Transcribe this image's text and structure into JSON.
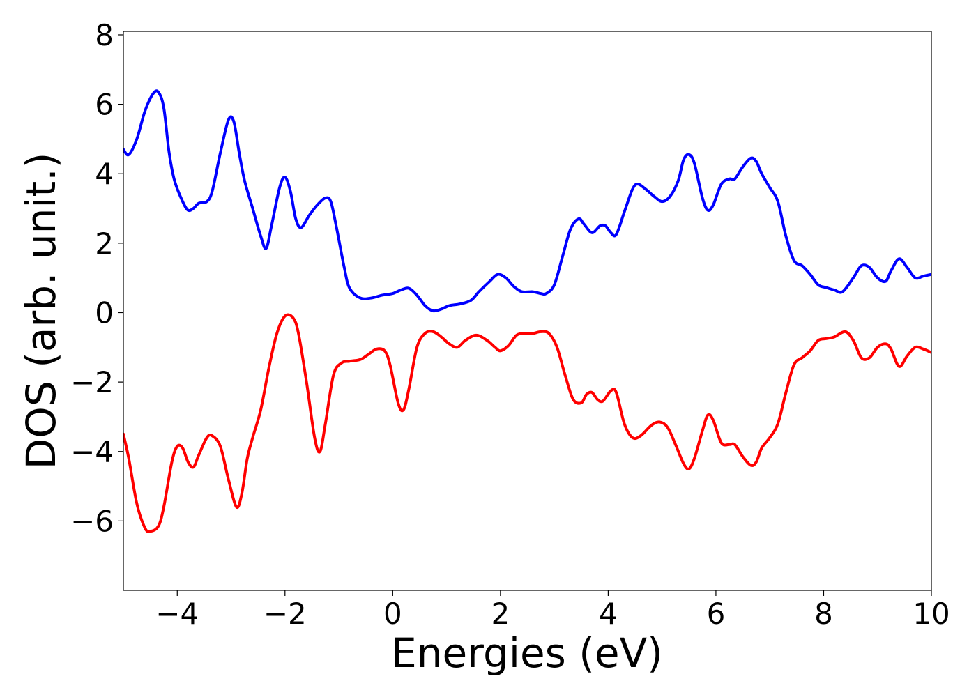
{
  "chart_data": {
    "type": "line",
    "title": "",
    "xlabel": "Energies (eV)",
    "ylabel": "DOS (arb. unit.)",
    "xlim": [
      -5,
      10
    ],
    "ylim": [
      -8,
      8.1
    ],
    "xticks": [
      -4,
      -2,
      0,
      2,
      4,
      6,
      8,
      10
    ],
    "xtick_labels": [
      "−4",
      "−2",
      "0",
      "2",
      "4",
      "6",
      "8",
      "10"
    ],
    "yticks": [
      -6,
      -4,
      -2,
      0,
      2,
      4,
      6,
      8
    ],
    "ytick_labels": [
      "−6",
      "−4",
      "−2",
      "0",
      "2",
      "4",
      "6",
      "8"
    ],
    "grid": false,
    "legend": "none",
    "series": [
      {
        "color": "#0000ff",
        "points": [
          [
            -5.0,
            4.7
          ],
          [
            -4.9,
            4.55
          ],
          [
            -4.75,
            5.0
          ],
          [
            -4.6,
            5.8
          ],
          [
            -4.45,
            6.3
          ],
          [
            -4.35,
            6.35
          ],
          [
            -4.25,
            5.9
          ],
          [
            -4.15,
            4.6
          ],
          [
            -4.05,
            3.8
          ],
          [
            -3.9,
            3.2
          ],
          [
            -3.8,
            2.95
          ],
          [
            -3.7,
            3.0
          ],
          [
            -3.6,
            3.15
          ],
          [
            -3.45,
            3.2
          ],
          [
            -3.35,
            3.5
          ],
          [
            -3.2,
            4.6
          ],
          [
            -3.05,
            5.55
          ],
          [
            -2.95,
            5.5
          ],
          [
            -2.85,
            4.6
          ],
          [
            -2.75,
            3.8
          ],
          [
            -2.6,
            3.0
          ],
          [
            -2.45,
            2.2
          ],
          [
            -2.35,
            1.85
          ],
          [
            -2.25,
            2.5
          ],
          [
            -2.1,
            3.6
          ],
          [
            -2.0,
            3.9
          ],
          [
            -1.9,
            3.5
          ],
          [
            -1.8,
            2.7
          ],
          [
            -1.7,
            2.45
          ],
          [
            -1.55,
            2.8
          ],
          [
            -1.4,
            3.1
          ],
          [
            -1.25,
            3.3
          ],
          [
            -1.15,
            3.2
          ],
          [
            -1.05,
            2.5
          ],
          [
            -0.9,
            1.3
          ],
          [
            -0.8,
            0.7
          ],
          [
            -0.6,
            0.42
          ],
          [
            -0.4,
            0.42
          ],
          [
            -0.2,
            0.5
          ],
          [
            0.0,
            0.55
          ],
          [
            0.15,
            0.65
          ],
          [
            0.3,
            0.7
          ],
          [
            0.45,
            0.5
          ],
          [
            0.6,
            0.2
          ],
          [
            0.75,
            0.05
          ],
          [
            0.9,
            0.1
          ],
          [
            1.05,
            0.2
          ],
          [
            1.25,
            0.25
          ],
          [
            1.45,
            0.35
          ],
          [
            1.6,
            0.6
          ],
          [
            1.8,
            0.9
          ],
          [
            1.95,
            1.1
          ],
          [
            2.1,
            1.0
          ],
          [
            2.25,
            0.75
          ],
          [
            2.4,
            0.6
          ],
          [
            2.6,
            0.6
          ],
          [
            2.75,
            0.55
          ],
          [
            2.85,
            0.55
          ],
          [
            3.0,
            0.8
          ],
          [
            3.15,
            1.6
          ],
          [
            3.3,
            2.4
          ],
          [
            3.45,
            2.7
          ],
          [
            3.55,
            2.55
          ],
          [
            3.7,
            2.3
          ],
          [
            3.85,
            2.5
          ],
          [
            3.95,
            2.5
          ],
          [
            4.05,
            2.3
          ],
          [
            4.15,
            2.25
          ],
          [
            4.3,
            2.9
          ],
          [
            4.45,
            3.55
          ],
          [
            4.55,
            3.7
          ],
          [
            4.7,
            3.55
          ],
          [
            4.85,
            3.35
          ],
          [
            5.0,
            3.2
          ],
          [
            5.15,
            3.35
          ],
          [
            5.3,
            3.8
          ],
          [
            5.4,
            4.4
          ],
          [
            5.5,
            4.55
          ],
          [
            5.6,
            4.3
          ],
          [
            5.75,
            3.3
          ],
          [
            5.85,
            2.95
          ],
          [
            5.95,
            3.1
          ],
          [
            6.1,
            3.7
          ],
          [
            6.25,
            3.85
          ],
          [
            6.35,
            3.85
          ],
          [
            6.5,
            4.2
          ],
          [
            6.65,
            4.45
          ],
          [
            6.75,
            4.35
          ],
          [
            6.85,
            4.0
          ],
          [
            7.0,
            3.6
          ],
          [
            7.15,
            3.2
          ],
          [
            7.3,
            2.2
          ],
          [
            7.45,
            1.5
          ],
          [
            7.6,
            1.35
          ],
          [
            7.75,
            1.1
          ],
          [
            7.9,
            0.8
          ],
          [
            8.05,
            0.72
          ],
          [
            8.2,
            0.65
          ],
          [
            8.35,
            0.6
          ],
          [
            8.55,
            1.0
          ],
          [
            8.7,
            1.35
          ],
          [
            8.85,
            1.3
          ],
          [
            9.0,
            1.0
          ],
          [
            9.15,
            0.9
          ],
          [
            9.25,
            1.2
          ],
          [
            9.4,
            1.55
          ],
          [
            9.55,
            1.3
          ],
          [
            9.7,
            1.0
          ],
          [
            9.85,
            1.05
          ],
          [
            10.0,
            1.1
          ]
        ]
      },
      {
        "color": "#ff0000",
        "points": [
          [
            -5.0,
            -3.5
          ],
          [
            -4.9,
            -4.2
          ],
          [
            -4.75,
            -5.5
          ],
          [
            -4.6,
            -6.2
          ],
          [
            -4.5,
            -6.3
          ],
          [
            -4.35,
            -6.15
          ],
          [
            -4.25,
            -5.6
          ],
          [
            -4.1,
            -4.3
          ],
          [
            -4.0,
            -3.85
          ],
          [
            -3.9,
            -3.9
          ],
          [
            -3.8,
            -4.3
          ],
          [
            -3.7,
            -4.45
          ],
          [
            -3.6,
            -4.1
          ],
          [
            -3.45,
            -3.6
          ],
          [
            -3.35,
            -3.55
          ],
          [
            -3.2,
            -3.85
          ],
          [
            -3.05,
            -4.8
          ],
          [
            -2.9,
            -5.6
          ],
          [
            -2.8,
            -5.2
          ],
          [
            -2.7,
            -4.2
          ],
          [
            -2.6,
            -3.6
          ],
          [
            -2.45,
            -2.8
          ],
          [
            -2.3,
            -1.6
          ],
          [
            -2.15,
            -0.6
          ],
          [
            -2.0,
            -0.1
          ],
          [
            -1.85,
            -0.15
          ],
          [
            -1.75,
            -0.6
          ],
          [
            -1.6,
            -2.0
          ],
          [
            -1.45,
            -3.6
          ],
          [
            -1.35,
            -4.0
          ],
          [
            -1.25,
            -3.2
          ],
          [
            -1.1,
            -1.8
          ],
          [
            -0.95,
            -1.45
          ],
          [
            -0.8,
            -1.4
          ],
          [
            -0.6,
            -1.35
          ],
          [
            -0.45,
            -1.2
          ],
          [
            -0.3,
            -1.05
          ],
          [
            -0.15,
            -1.1
          ],
          [
            -0.05,
            -1.5
          ],
          [
            0.1,
            -2.6
          ],
          [
            0.2,
            -2.8
          ],
          [
            0.3,
            -2.2
          ],
          [
            0.45,
            -1.0
          ],
          [
            0.6,
            -0.6
          ],
          [
            0.75,
            -0.55
          ],
          [
            0.9,
            -0.7
          ],
          [
            1.05,
            -0.9
          ],
          [
            1.2,
            -1.0
          ],
          [
            1.35,
            -0.8
          ],
          [
            1.55,
            -0.65
          ],
          [
            1.75,
            -0.8
          ],
          [
            1.9,
            -1.0
          ],
          [
            2.0,
            -1.1
          ],
          [
            2.15,
            -0.95
          ],
          [
            2.3,
            -0.65
          ],
          [
            2.45,
            -0.6
          ],
          [
            2.6,
            -0.6
          ],
          [
            2.75,
            -0.55
          ],
          [
            2.9,
            -0.6
          ],
          [
            3.05,
            -1.0
          ],
          [
            3.2,
            -1.8
          ],
          [
            3.35,
            -2.5
          ],
          [
            3.5,
            -2.6
          ],
          [
            3.6,
            -2.35
          ],
          [
            3.7,
            -2.3
          ],
          [
            3.8,
            -2.5
          ],
          [
            3.9,
            -2.55
          ],
          [
            4.05,
            -2.25
          ],
          [
            4.15,
            -2.3
          ],
          [
            4.3,
            -3.2
          ],
          [
            4.45,
            -3.6
          ],
          [
            4.6,
            -3.55
          ],
          [
            4.8,
            -3.25
          ],
          [
            4.95,
            -3.15
          ],
          [
            5.1,
            -3.3
          ],
          [
            5.25,
            -3.8
          ],
          [
            5.4,
            -4.35
          ],
          [
            5.5,
            -4.5
          ],
          [
            5.6,
            -4.2
          ],
          [
            5.75,
            -3.4
          ],
          [
            5.85,
            -2.95
          ],
          [
            5.95,
            -3.1
          ],
          [
            6.1,
            -3.75
          ],
          [
            6.25,
            -3.8
          ],
          [
            6.35,
            -3.8
          ],
          [
            6.5,
            -4.15
          ],
          [
            6.65,
            -4.4
          ],
          [
            6.75,
            -4.3
          ],
          [
            6.85,
            -3.9
          ],
          [
            7.0,
            -3.6
          ],
          [
            7.15,
            -3.2
          ],
          [
            7.3,
            -2.3
          ],
          [
            7.45,
            -1.5
          ],
          [
            7.6,
            -1.3
          ],
          [
            7.75,
            -1.1
          ],
          [
            7.9,
            -0.8
          ],
          [
            8.05,
            -0.75
          ],
          [
            8.2,
            -0.7
          ],
          [
            8.4,
            -0.55
          ],
          [
            8.55,
            -0.8
          ],
          [
            8.7,
            -1.3
          ],
          [
            8.85,
            -1.3
          ],
          [
            9.0,
            -1.0
          ],
          [
            9.15,
            -0.9
          ],
          [
            9.25,
            -1.05
          ],
          [
            9.4,
            -1.55
          ],
          [
            9.55,
            -1.25
          ],
          [
            9.7,
            -1.0
          ],
          [
            9.85,
            -1.05
          ],
          [
            10.0,
            -1.15
          ]
        ]
      }
    ]
  }
}
